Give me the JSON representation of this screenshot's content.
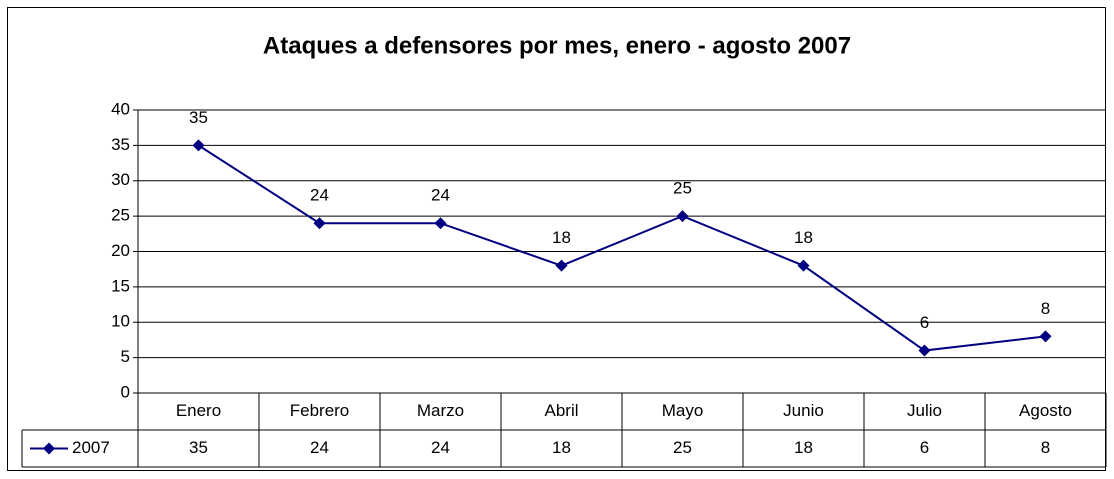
{
  "chart_data": {
    "type": "line",
    "title": "Ataques a defensores por mes,  enero - agosto 2007",
    "categories": [
      "Enero",
      "Febrero",
      "Marzo",
      "Abril",
      "Mayo",
      "Junio",
      "Julio",
      "Agosto"
    ],
    "series": [
      {
        "name": "2007",
        "color": "#000080",
        "values": [
          35,
          24,
          24,
          18,
          25,
          18,
          6,
          8
        ]
      }
    ],
    "ylim": [
      0,
      40
    ],
    "yticks": [
      0,
      5,
      10,
      15,
      20,
      25,
      30,
      35,
      40
    ],
    "grid": true,
    "data_table": true
  }
}
